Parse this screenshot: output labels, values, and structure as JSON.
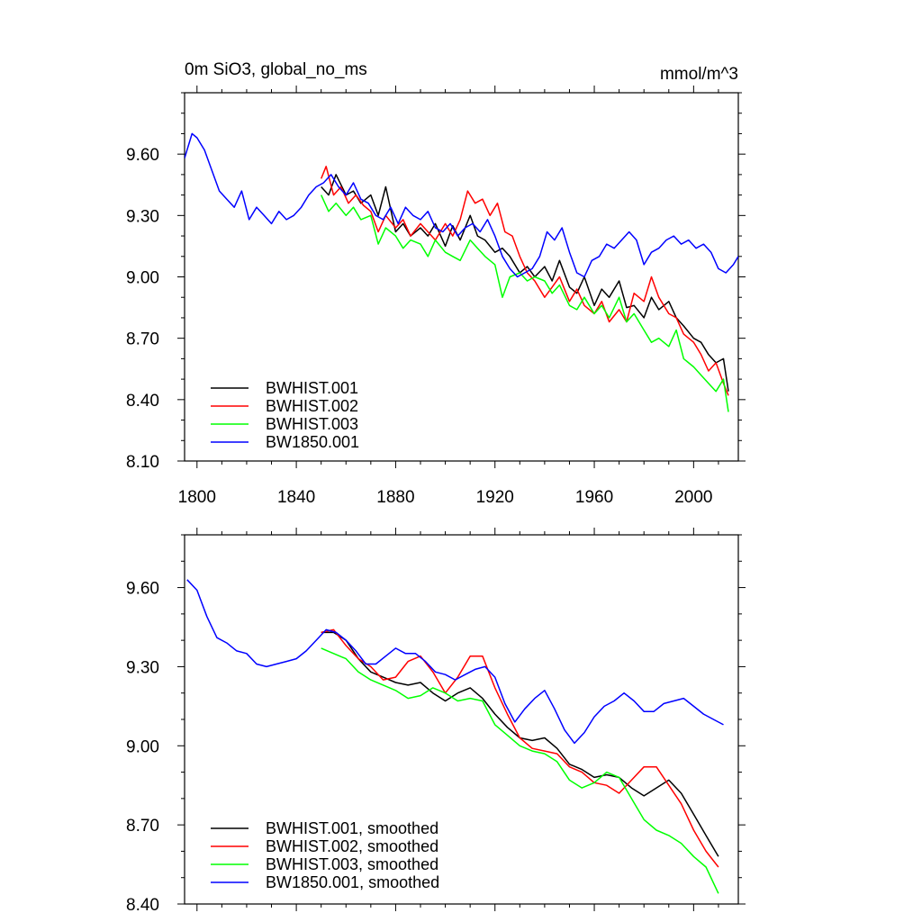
{
  "chart_data": [
    {
      "type": "line",
      "title": "0m SiO3, global_no_ms",
      "units": "mmol/m^3",
      "xlim": [
        1795,
        2018
      ],
      "ylim": [
        8.1,
        9.9
      ],
      "xticks": [
        1800,
        1840,
        1880,
        1920,
        1960,
        2000
      ],
      "yticks": [
        8.1,
        8.4,
        8.7,
        9.0,
        9.3,
        9.6
      ],
      "ytick_labels": [
        "8.10",
        "8.40",
        "8.70",
        "9.00",
        "9.30",
        "9.60"
      ],
      "legend_position": "bottom-left",
      "series": [
        {
          "name": "BWHIST.001",
          "color": "#000000",
          "x": [
            1850,
            1853,
            1856,
            1860,
            1863,
            1866,
            1870,
            1873,
            1876,
            1880,
            1883,
            1886,
            1890,
            1893,
            1896,
            1900,
            1903,
            1906,
            1910,
            1913,
            1916,
            1920,
            1923,
            1926,
            1930,
            1933,
            1936,
            1940,
            1943,
            1946,
            1950,
            1953,
            1956,
            1960,
            1963,
            1966,
            1970,
            1973,
            1976,
            1980,
            1983,
            1986,
            1990,
            1993,
            1996,
            2000,
            2003,
            2006,
            2009,
            2012,
            2014
          ],
          "y": [
            9.44,
            9.4,
            9.5,
            9.4,
            9.42,
            9.36,
            9.4,
            9.3,
            9.44,
            9.22,
            9.26,
            9.2,
            9.24,
            9.2,
            9.26,
            9.15,
            9.25,
            9.18,
            9.3,
            9.2,
            9.18,
            9.12,
            9.14,
            9.1,
            9.02,
            9.05,
            9.0,
            9.05,
            8.98,
            9.08,
            8.95,
            8.92,
            9.0,
            8.86,
            8.94,
            8.9,
            8.98,
            8.85,
            8.86,
            8.8,
            8.9,
            8.84,
            8.88,
            8.8,
            8.76,
            8.7,
            8.68,
            8.62,
            8.58,
            8.6,
            8.44
          ]
        },
        {
          "name": "BWHIST.002",
          "color": "#ff0000",
          "x": [
            1850,
            1852,
            1855,
            1858,
            1861,
            1864,
            1867,
            1870,
            1873,
            1876,
            1880,
            1883,
            1886,
            1890,
            1893,
            1896,
            1900,
            1903,
            1906,
            1909,
            1912,
            1915,
            1918,
            1921,
            1924,
            1927,
            1930,
            1933,
            1936,
            1940,
            1943,
            1946,
            1950,
            1953,
            1956,
            1960,
            1963,
            1966,
            1970,
            1973,
            1976,
            1980,
            1983,
            1986,
            1990,
            1993,
            1996,
            2000,
            2003,
            2006,
            2009,
            2012,
            2014
          ],
          "y": [
            9.48,
            9.54,
            9.4,
            9.44,
            9.36,
            9.4,
            9.35,
            9.32,
            9.22,
            9.3,
            9.24,
            9.28,
            9.2,
            9.26,
            9.22,
            9.18,
            9.26,
            9.2,
            9.28,
            9.42,
            9.36,
            9.38,
            9.3,
            9.36,
            9.22,
            9.2,
            9.1,
            9.02,
            8.98,
            8.9,
            8.95,
            9.0,
            8.88,
            8.94,
            8.86,
            8.82,
            8.88,
            8.78,
            8.84,
            8.78,
            8.92,
            8.88,
            9.0,
            8.9,
            8.82,
            8.8,
            8.72,
            8.68,
            8.62,
            8.54,
            8.58,
            8.48,
            8.42
          ]
        },
        {
          "name": "BWHIST.003",
          "color": "#00ff00",
          "x": [
            1850,
            1853,
            1856,
            1860,
            1863,
            1866,
            1870,
            1873,
            1876,
            1880,
            1883,
            1886,
            1890,
            1893,
            1896,
            1900,
            1903,
            1906,
            1910,
            1913,
            1916,
            1920,
            1923,
            1926,
            1930,
            1933,
            1936,
            1940,
            1943,
            1946,
            1950,
            1953,
            1956,
            1960,
            1963,
            1966,
            1970,
            1973,
            1976,
            1980,
            1983,
            1986,
            1990,
            1993,
            1996,
            2000,
            2003,
            2006,
            2009,
            2012,
            2014
          ],
          "y": [
            9.4,
            9.32,
            9.36,
            9.3,
            9.34,
            9.28,
            9.3,
            9.16,
            9.24,
            9.2,
            9.14,
            9.18,
            9.16,
            9.1,
            9.18,
            9.12,
            9.1,
            9.08,
            9.18,
            9.14,
            9.1,
            9.06,
            8.9,
            9.0,
            9.02,
            8.98,
            9.0,
            8.98,
            8.92,
            8.96,
            8.86,
            8.84,
            8.9,
            8.82,
            8.86,
            8.8,
            8.9,
            8.78,
            8.82,
            8.74,
            8.68,
            8.7,
            8.66,
            8.74,
            8.6,
            8.56,
            8.52,
            8.48,
            8.44,
            8.5,
            8.34
          ]
        },
        {
          "name": "BW1850.001",
          "color": "#0000ff",
          "x": [
            1795,
            1798,
            1800,
            1803,
            1806,
            1809,
            1812,
            1815,
            1818,
            1821,
            1824,
            1827,
            1830,
            1833,
            1836,
            1839,
            1842,
            1845,
            1848,
            1851,
            1854,
            1857,
            1860,
            1863,
            1866,
            1869,
            1872,
            1875,
            1878,
            1881,
            1884,
            1887,
            1890,
            1893,
            1896,
            1899,
            1902,
            1905,
            1908,
            1911,
            1914,
            1917,
            1920,
            1923,
            1926,
            1929,
            1932,
            1935,
            1938,
            1941,
            1944,
            1947,
            1950,
            1953,
            1956,
            1959,
            1962,
            1965,
            1968,
            1971,
            1974,
            1977,
            1980,
            1983,
            1986,
            1989,
            1992,
            1995,
            1998,
            2001,
            2004,
            2007,
            2010,
            2013,
            2016,
            2018
          ],
          "y": [
            9.58,
            9.7,
            9.68,
            9.62,
            9.52,
            9.42,
            9.38,
            9.34,
            9.42,
            9.28,
            9.34,
            9.3,
            9.26,
            9.32,
            9.28,
            9.3,
            9.34,
            9.4,
            9.44,
            9.46,
            9.5,
            9.44,
            9.4,
            9.46,
            9.38,
            9.36,
            9.3,
            9.28,
            9.34,
            9.26,
            9.34,
            9.3,
            9.28,
            9.32,
            9.24,
            9.22,
            9.26,
            9.2,
            9.24,
            9.26,
            9.22,
            9.28,
            9.2,
            9.1,
            9.04,
            9.0,
            9.02,
            9.04,
            9.1,
            9.22,
            9.18,
            9.24,
            9.12,
            9.02,
            9.0,
            9.08,
            9.1,
            9.16,
            9.14,
            9.18,
            9.22,
            9.18,
            9.06,
            9.12,
            9.14,
            9.18,
            9.2,
            9.16,
            9.18,
            9.14,
            9.16,
            9.12,
            9.04,
            9.02,
            9.06,
            9.1
          ]
        }
      ]
    },
    {
      "type": "line",
      "xlim": [
        1795,
        2018
      ],
      "ylim": [
        8.4,
        9.8
      ],
      "xticks": [
        1800,
        1840,
        1880,
        1920,
        1960,
        2000
      ],
      "yticks": [
        8.4,
        8.7,
        9.0,
        9.3,
        9.6
      ],
      "ytick_labels": [
        "8.40",
        "8.70",
        "9.00",
        "9.30",
        "9.60"
      ],
      "legend_position": "bottom-left",
      "series": [
        {
          "name": "BWHIST.001, smoothed",
          "color": "#000000",
          "x": [
            1850,
            1855,
            1860,
            1865,
            1870,
            1875,
            1880,
            1885,
            1890,
            1895,
            1900,
            1905,
            1910,
            1915,
            1920,
            1925,
            1930,
            1935,
            1940,
            1945,
            1950,
            1955,
            1960,
            1965,
            1970,
            1975,
            1980,
            1985,
            1990,
            1995,
            2000,
            2005,
            2010
          ],
          "y": [
            9.43,
            9.43,
            9.4,
            9.33,
            9.28,
            9.26,
            9.24,
            9.23,
            9.24,
            9.2,
            9.17,
            9.2,
            9.22,
            9.18,
            9.12,
            9.07,
            9.03,
            9.02,
            9.03,
            8.99,
            8.93,
            8.91,
            8.88,
            8.89,
            8.88,
            8.84,
            8.81,
            8.84,
            8.87,
            8.82,
            8.74,
            8.66,
            8.58
          ]
        },
        {
          "name": "BWHIST.002, smoothed",
          "color": "#ff0000",
          "x": [
            1850,
            1855,
            1860,
            1865,
            1870,
            1875,
            1880,
            1885,
            1890,
            1895,
            1900,
            1905,
            1910,
            1915,
            1920,
            1925,
            1930,
            1935,
            1940,
            1945,
            1950,
            1955,
            1960,
            1965,
            1970,
            1975,
            1980,
            1985,
            1990,
            1995,
            2000,
            2005,
            2010
          ],
          "y": [
            9.43,
            9.44,
            9.38,
            9.33,
            9.3,
            9.25,
            9.26,
            9.32,
            9.34,
            9.28,
            9.2,
            9.26,
            9.34,
            9.34,
            9.22,
            9.12,
            9.03,
            8.99,
            8.98,
            8.97,
            8.92,
            8.9,
            8.86,
            8.85,
            8.82,
            8.87,
            8.92,
            8.92,
            8.85,
            8.78,
            8.68,
            8.6,
            8.54
          ]
        },
        {
          "name": "BWHIST.003, smoothed",
          "color": "#00ff00",
          "x": [
            1850,
            1855,
            1860,
            1865,
            1870,
            1875,
            1880,
            1885,
            1890,
            1895,
            1900,
            1905,
            1910,
            1915,
            1920,
            1925,
            1930,
            1935,
            1940,
            1945,
            1950,
            1955,
            1960,
            1965,
            1970,
            1975,
            1980,
            1985,
            1990,
            1995,
            2000,
            2005,
            2010
          ],
          "y": [
            9.37,
            9.35,
            9.33,
            9.28,
            9.25,
            9.23,
            9.21,
            9.18,
            9.19,
            9.22,
            9.2,
            9.17,
            9.18,
            9.17,
            9.08,
            9.04,
            9.0,
            8.98,
            8.97,
            8.94,
            8.87,
            8.84,
            8.86,
            8.9,
            8.88,
            8.8,
            8.72,
            8.68,
            8.66,
            8.63,
            8.58,
            8.54,
            8.44
          ]
        },
        {
          "name": "BW1850.001, smoothed",
          "color": "#0000ff",
          "x": [
            1796,
            1800,
            1804,
            1808,
            1812,
            1816,
            1820,
            1824,
            1828,
            1832,
            1836,
            1840,
            1844,
            1848,
            1852,
            1856,
            1860,
            1864,
            1868,
            1872,
            1876,
            1880,
            1884,
            1888,
            1892,
            1896,
            1900,
            1904,
            1908,
            1912,
            1916,
            1920,
            1924,
            1928,
            1932,
            1936,
            1940,
            1944,
            1948,
            1952,
            1956,
            1960,
            1964,
            1968,
            1972,
            1976,
            1980,
            1984,
            1988,
            1992,
            1996,
            2000,
            2004,
            2008,
            2012
          ],
          "y": [
            9.63,
            9.59,
            9.49,
            9.41,
            9.39,
            9.36,
            9.35,
            9.31,
            9.3,
            9.31,
            9.32,
            9.33,
            9.36,
            9.4,
            9.44,
            9.43,
            9.4,
            9.36,
            9.31,
            9.31,
            9.34,
            9.37,
            9.35,
            9.35,
            9.32,
            9.28,
            9.27,
            9.25,
            9.27,
            9.29,
            9.3,
            9.26,
            9.16,
            9.09,
            9.14,
            9.18,
            9.21,
            9.14,
            9.06,
            9.01,
            9.05,
            9.11,
            9.15,
            9.17,
            9.2,
            9.17,
            9.13,
            9.13,
            9.16,
            9.17,
            9.18,
            9.15,
            9.12,
            9.1,
            9.08
          ]
        }
      ]
    }
  ]
}
